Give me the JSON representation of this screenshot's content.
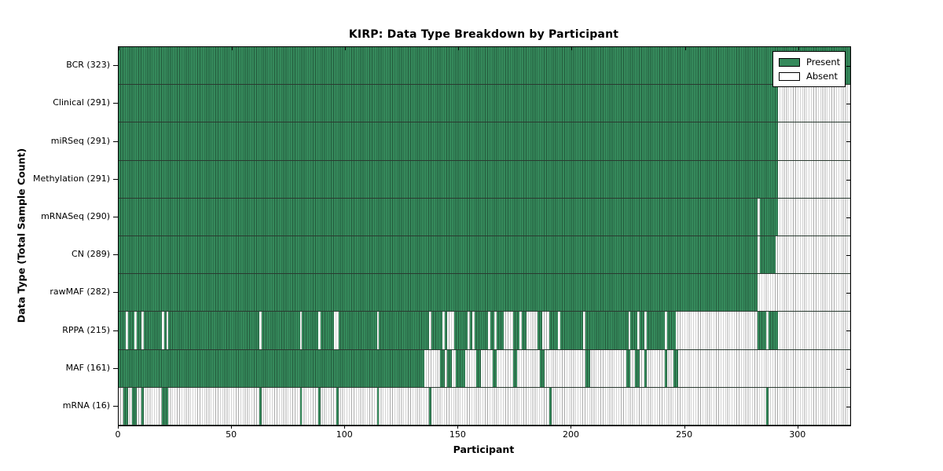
{
  "chart_data": {
    "type": "heatmap",
    "title": "KIRP: Data Type Breakdown by Participant",
    "xlabel": "Participant",
    "ylabel": "Data Type (Total Sample Count)",
    "xlim": [
      0,
      323
    ],
    "x_ticks": [
      0,
      50,
      100,
      150,
      200,
      250,
      300
    ],
    "grid": false,
    "legend_position": "upper right",
    "legend": [
      {
        "label": "Present",
        "color": "#35895b"
      },
      {
        "label": "Absent",
        "color": "#ffffff"
      }
    ],
    "colors": {
      "present_fill": "#35895b",
      "present_edge": "#245c3d",
      "absent_fill": "#ffffff",
      "absent_edge": "#ababab",
      "axis": "#000000"
    },
    "rows": [
      {
        "name": "BCR",
        "label": "BCR (323)",
        "total": 323,
        "present_segments": [
          [
            0,
            323
          ]
        ]
      },
      {
        "name": "Clinical",
        "label": "Clinical (291)",
        "total": 291,
        "present_segments": [
          [
            0,
            291
          ]
        ]
      },
      {
        "name": "miRSeq",
        "label": "miRSeq (291)",
        "total": 291,
        "present_segments": [
          [
            0,
            291
          ]
        ]
      },
      {
        "name": "Methylation",
        "label": "Methylation (291)",
        "total": 291,
        "present_segments": [
          [
            0,
            291
          ]
        ]
      },
      {
        "name": "mRNASeq",
        "label": "mRNASeq (290)",
        "total": 290,
        "present_segments": [
          [
            0,
            282
          ],
          [
            283,
            291
          ]
        ]
      },
      {
        "name": "CN",
        "label": "CN (289)",
        "total": 289,
        "present_segments": [
          [
            0,
            282
          ],
          [
            283,
            290
          ]
        ]
      },
      {
        "name": "rawMAF",
        "label": "rawMAF (282)",
        "total": 282,
        "present_segments": [
          [
            0,
            282
          ]
        ]
      },
      {
        "name": "RPPA",
        "label": "RPPA (215)",
        "total": 215,
        "present_segments": [
          [
            0,
            3
          ],
          [
            4,
            7
          ],
          [
            8,
            10
          ],
          [
            11,
            19
          ],
          [
            20,
            21
          ],
          [
            22,
            62
          ],
          [
            63,
            80
          ],
          [
            81,
            88
          ],
          [
            89,
            95
          ],
          [
            97,
            114
          ],
          [
            115,
            137
          ],
          [
            138,
            143
          ],
          [
            144,
            145
          ],
          [
            148,
            154
          ],
          [
            155,
            156
          ],
          [
            157,
            163
          ],
          [
            164,
            166
          ],
          [
            167,
            170
          ],
          [
            174,
            177
          ],
          [
            178,
            180
          ],
          [
            185,
            187
          ],
          [
            190,
            194
          ],
          [
            195,
            205
          ],
          [
            206,
            225
          ],
          [
            226,
            229
          ],
          [
            230,
            232
          ],
          [
            233,
            241
          ],
          [
            242,
            246
          ],
          [
            282,
            286
          ],
          [
            287,
            291
          ]
        ]
      },
      {
        "name": "MAF",
        "label": "MAF (161)",
        "total": 161,
        "present_segments": [
          [
            0,
            135
          ],
          [
            142,
            144
          ],
          [
            145,
            147
          ],
          [
            149,
            153
          ],
          [
            158,
            160
          ],
          [
            165,
            167
          ],
          [
            174,
            176
          ],
          [
            186,
            188
          ],
          [
            206,
            208
          ],
          [
            224,
            226
          ],
          [
            228,
            230
          ],
          [
            232,
            233
          ],
          [
            241,
            242
          ],
          [
            245,
            247
          ]
        ]
      },
      {
        "name": "mRNA",
        "label": "mRNA (16)",
        "total": 16,
        "present_segments": [
          [
            2,
            4
          ],
          [
            6,
            8
          ],
          [
            10,
            11
          ],
          [
            19,
            22
          ],
          [
            62,
            63
          ],
          [
            80,
            81
          ],
          [
            88,
            89
          ],
          [
            96,
            97
          ],
          [
            114,
            115
          ],
          [
            137,
            138
          ],
          [
            190,
            191
          ],
          [
            286,
            287
          ]
        ]
      }
    ]
  }
}
